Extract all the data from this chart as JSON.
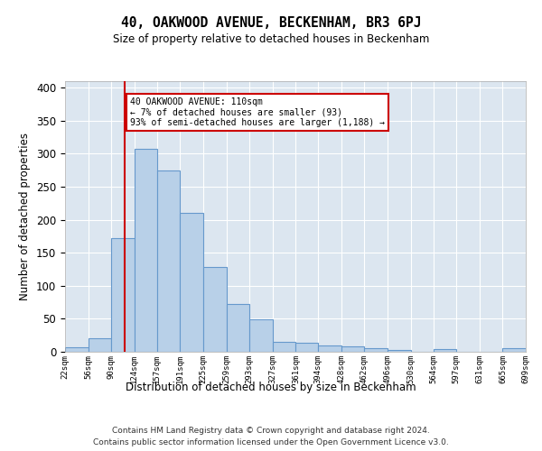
{
  "title": "40, OAKWOOD AVENUE, BECKENHAM, BR3 6PJ",
  "subtitle": "Size of property relative to detached houses in Beckenham",
  "xlabel": "Distribution of detached houses by size in Beckenham",
  "ylabel": "Number of detached properties",
  "bar_color": "#b8d0e8",
  "bar_edge_color": "#6699cc",
  "background_color": "#dce6f0",
  "grid_color": "#ffffff",
  "bin_labels": [
    "22sqm",
    "56sqm",
    "90sqm",
    "124sqm",
    "157sqm",
    "191sqm",
    "225sqm",
    "259sqm",
    "293sqm",
    "327sqm",
    "361sqm",
    "394sqm",
    "428sqm",
    "462sqm",
    "496sqm",
    "530sqm",
    "564sqm",
    "597sqm",
    "631sqm",
    "665sqm",
    "699sqm"
  ],
  "bar_values": [
    7,
    20,
    172,
    308,
    275,
    210,
    128,
    72,
    49,
    15,
    14,
    9,
    8,
    5,
    3,
    0,
    4,
    0,
    0,
    5
  ],
  "bin_edges": [
    22,
    56,
    90,
    124,
    157,
    191,
    225,
    259,
    293,
    327,
    361,
    394,
    428,
    462,
    496,
    530,
    564,
    597,
    631,
    665,
    699
  ],
  "property_size": 110,
  "property_line_color": "#cc0000",
  "ylim": [
    0,
    410
  ],
  "yticks": [
    0,
    50,
    100,
    150,
    200,
    250,
    300,
    350,
    400
  ],
  "annotation_text": "40 OAKWOOD AVENUE: 110sqm\n← 7% of detached houses are smaller (93)\n93% of semi-detached houses are larger (1,188) →",
  "annotation_box_color": "#ffffff",
  "annotation_box_edge": "#cc0000",
  "footer_line1": "Contains HM Land Registry data © Crown copyright and database right 2024.",
  "footer_line2": "Contains public sector information licensed under the Open Government Licence v3.0."
}
